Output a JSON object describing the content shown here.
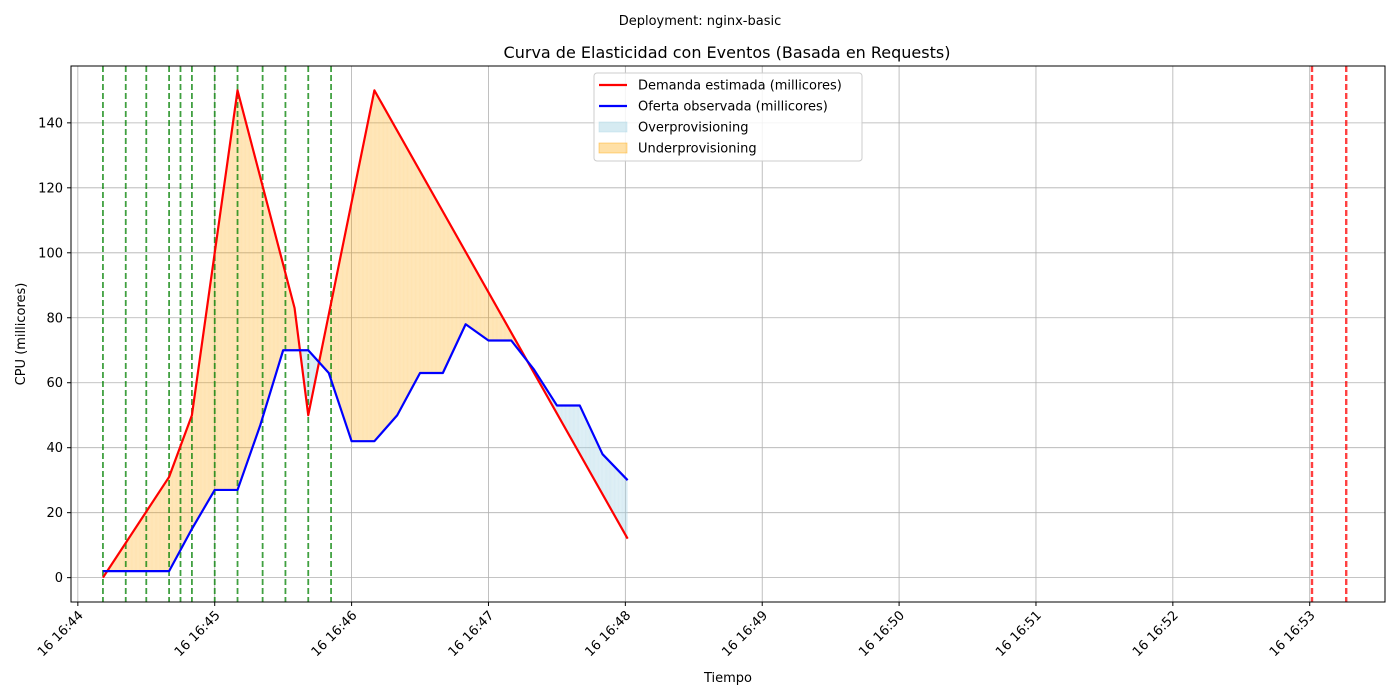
{
  "chart_data": {
    "type": "line",
    "suptitle": "Deployment: nginx-basic",
    "title": "Curva de Elasticidad con Eventos (Basada en Requests)",
    "xlabel": "Tiempo",
    "ylabel": "CPU (millicores)",
    "xlim": [
      "16:43:57",
      "16:53:33"
    ],
    "ylim": [
      -7.5,
      157.5
    ],
    "grid": true,
    "legend_position": "upper center",
    "x_ticks": [
      "16 16:44",
      "16 16:45",
      "16 16:46",
      "16 16:47",
      "16 16:48",
      "16 16:49",
      "16 16:50",
      "16 16:51",
      "16 16:52",
      "16 16:53"
    ],
    "y_ticks": [
      0,
      20,
      40,
      60,
      80,
      100,
      120,
      140
    ],
    "series": [
      {
        "name": "Demanda estimada (millicores)",
        "color": "#ff0000",
        "x": [
          "16:44:11",
          "16:44:40",
          "16:44:50",
          "16:45:10",
          "16:45:35",
          "16:45:41",
          "16:46:10",
          "16:48:01"
        ],
        "y": [
          0,
          31,
          50,
          150,
          83,
          50,
          150,
          12
        ]
      },
      {
        "name": "Oferta observada (millicores)",
        "color": "#0000ff",
        "x": [
          "16:44:11",
          "16:44:30",
          "16:44:40",
          "16:44:50",
          "16:45:00",
          "16:45:10",
          "16:45:20",
          "16:45:30",
          "16:45:41",
          "16:45:50",
          "16:46:00",
          "16:46:10",
          "16:46:20",
          "16:46:30",
          "16:46:40",
          "16:46:50",
          "16:47:00",
          "16:47:10",
          "16:47:20",
          "16:47:30",
          "16:47:40",
          "16:47:50",
          "16:48:01"
        ],
        "y": [
          2,
          2,
          2,
          15,
          27,
          27,
          47,
          70,
          70,
          63,
          42,
          42,
          50,
          63,
          63,
          78,
          73,
          73,
          64,
          53,
          53,
          38,
          30
        ]
      }
    ],
    "fill_legend": [
      {
        "name": "Overprovisioning",
        "color": "#add8e6"
      },
      {
        "name": "Underprovisioning",
        "color": "#ffa500"
      }
    ],
    "event_lines": {
      "green": [
        "16:44:11",
        "16:44:21",
        "16:44:30",
        "16:44:40",
        "16:44:45",
        "16:44:50",
        "16:45:00",
        "16:45:10",
        "16:45:21",
        "16:45:31",
        "16:45:41",
        "16:45:51"
      ],
      "red": [
        "16:53:01",
        "16:53:16"
      ]
    }
  }
}
